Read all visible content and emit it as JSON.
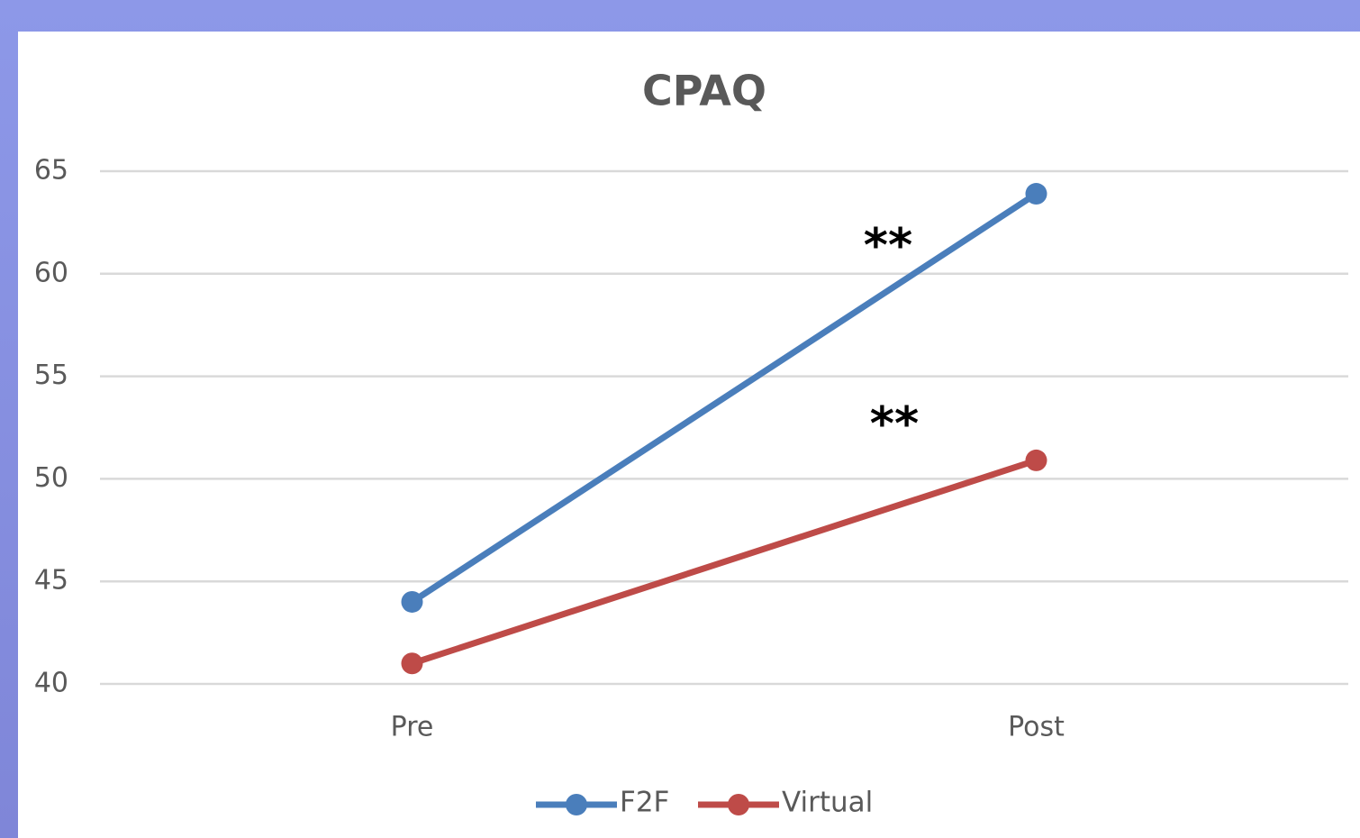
{
  "chart_data": {
    "type": "line",
    "title": "CPAQ",
    "categories": [
      "Pre",
      "Post"
    ],
    "series": [
      {
        "name": "F2F",
        "color": "#4a7ebb",
        "values": [
          44,
          63.9
        ]
      },
      {
        "name": "Virtual",
        "color": "#be4b48",
        "values": [
          41,
          50.9
        ]
      }
    ],
    "annotations": [
      "**",
      "**"
    ],
    "ylim": [
      40,
      65
    ],
    "yticks": [
      40,
      45,
      50,
      55,
      60,
      65
    ],
    "grid": true,
    "legend": "bottom"
  }
}
